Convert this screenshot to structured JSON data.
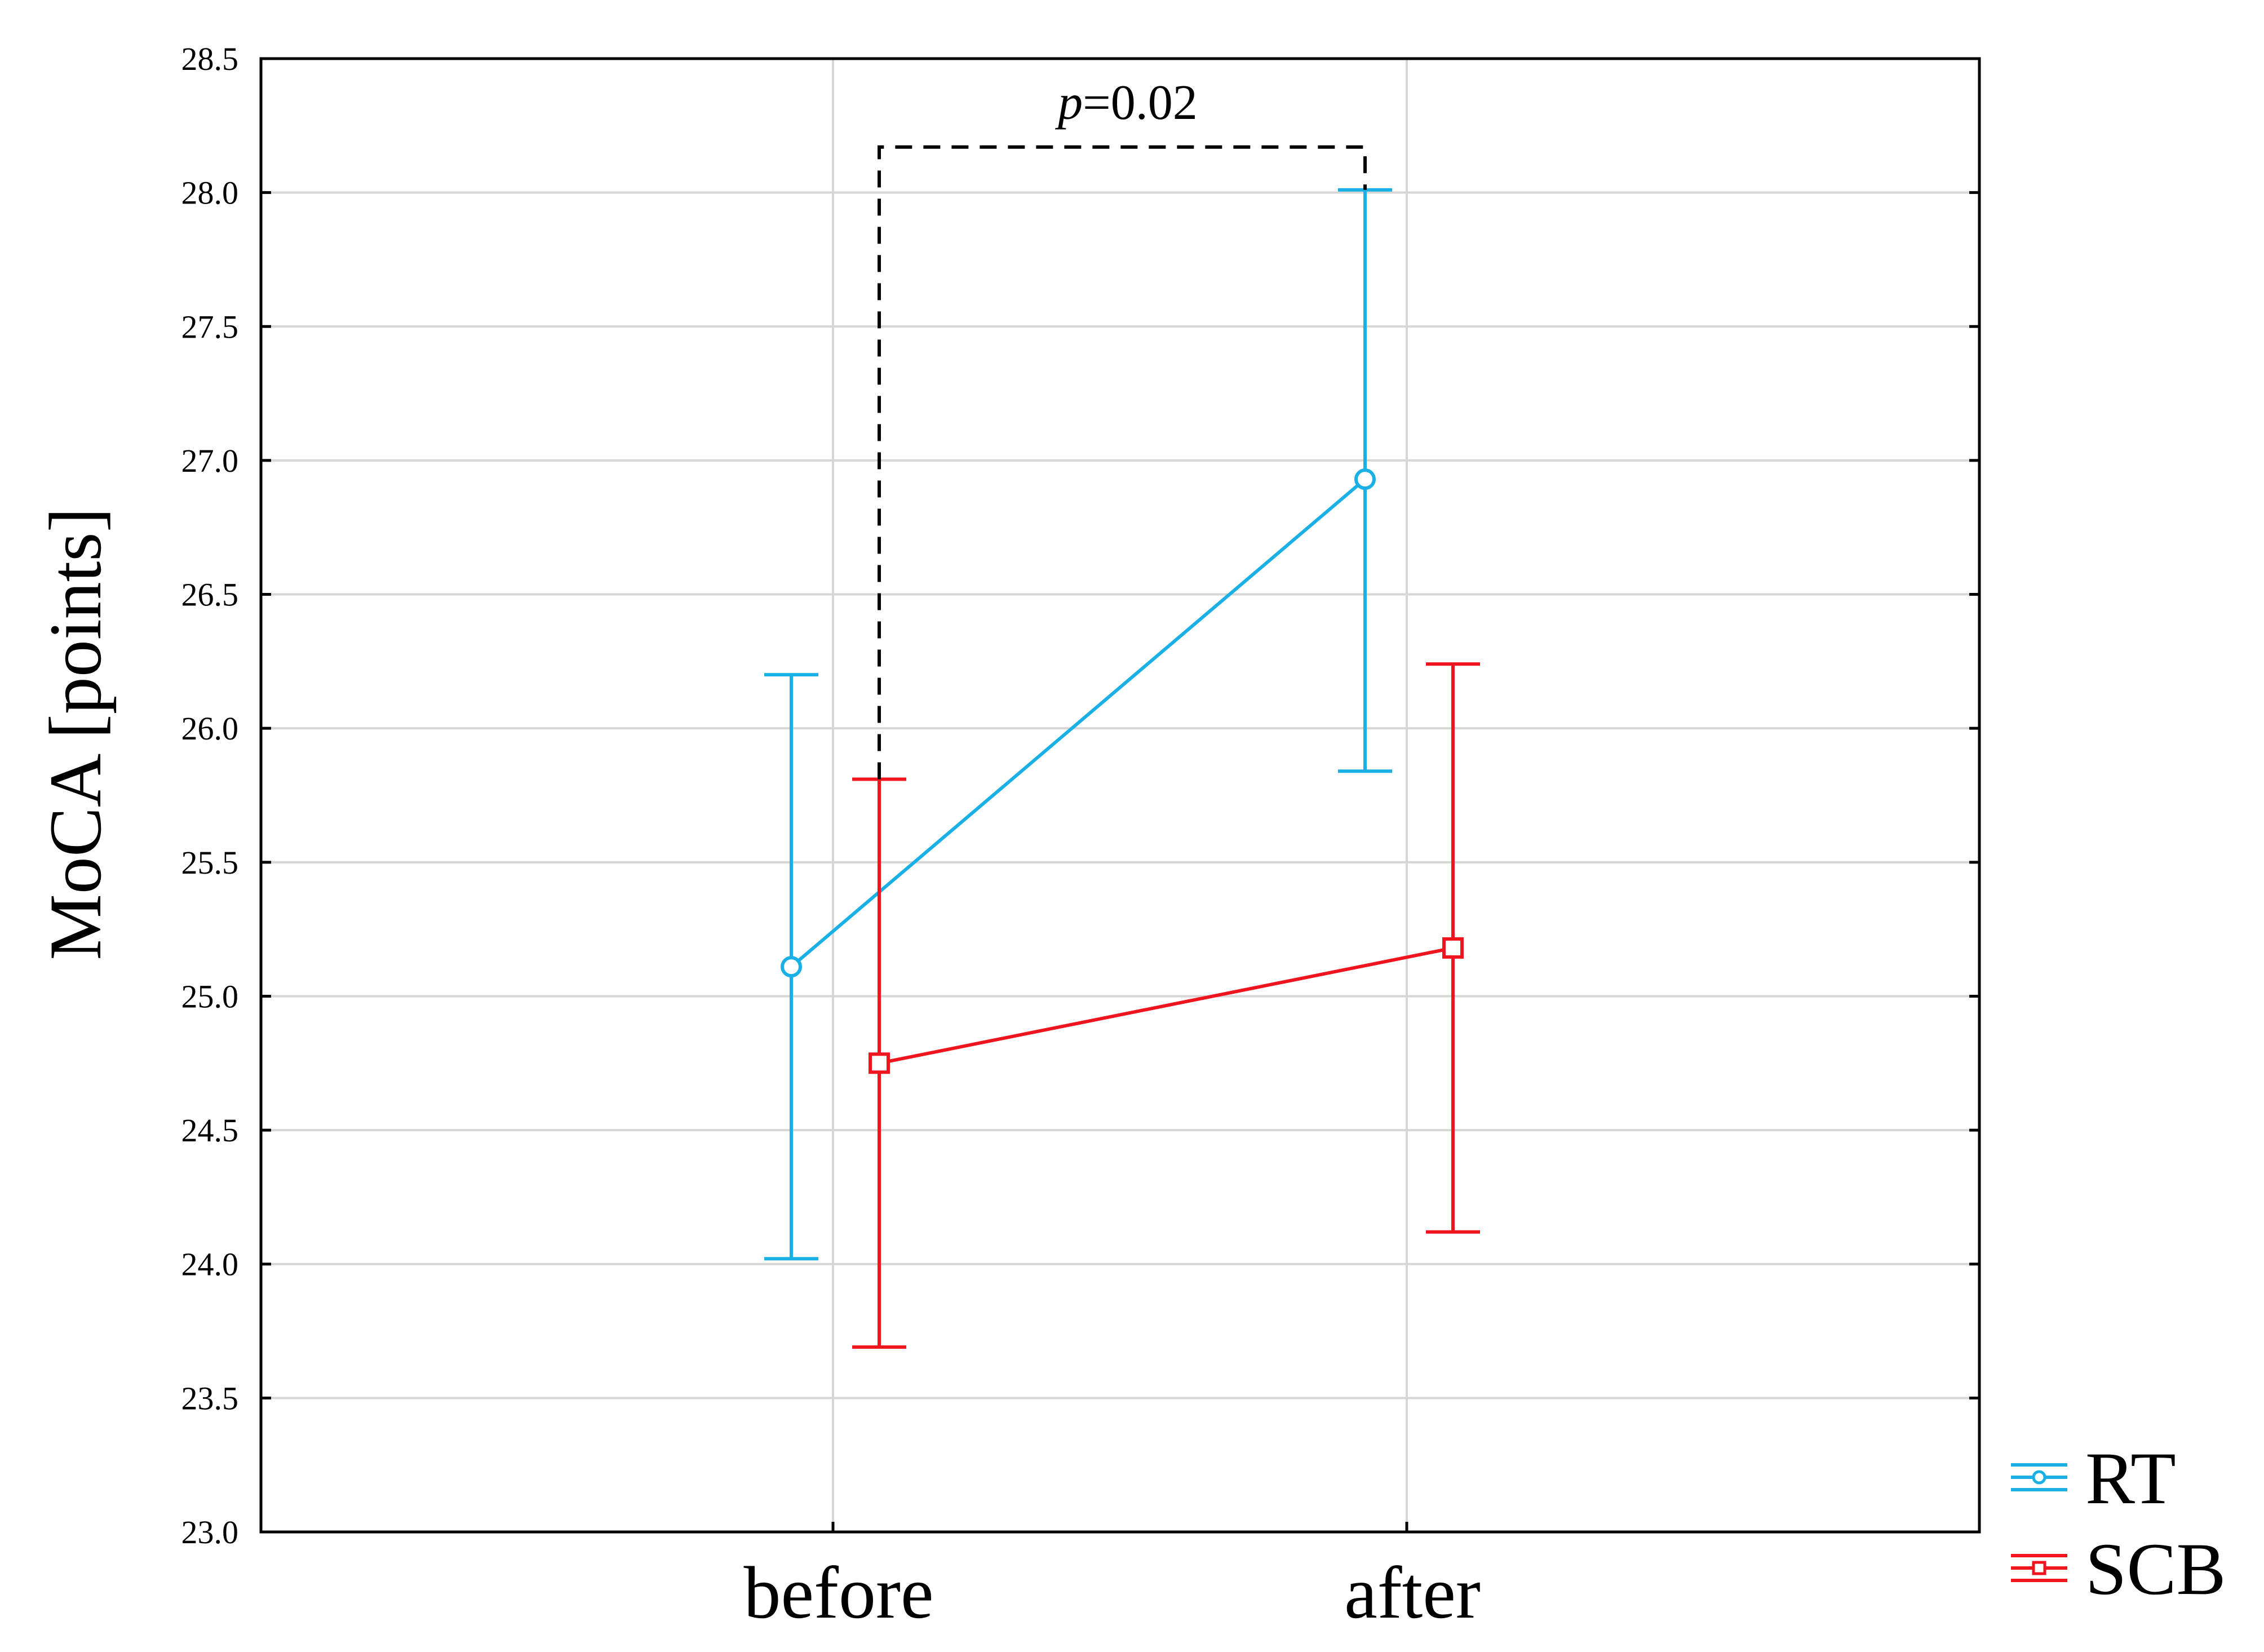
{
  "chart_data": {
    "type": "line",
    "title": "",
    "xlabel": "",
    "ylabel": "MoCA [points]",
    "categories": [
      "before",
      "after"
    ],
    "ylim": [
      23.0,
      28.5
    ],
    "yticks": [
      23.0,
      23.5,
      24.0,
      24.5,
      25.0,
      25.5,
      26.0,
      26.5,
      27.0,
      27.5,
      28.0,
      28.5
    ],
    "grid": true,
    "legend_position": "bottom-right, outside plot",
    "series": [
      {
        "name": "RT",
        "color": "#1AB0E6",
        "marker": "circle",
        "values": [
          25.11,
          26.93
        ],
        "lower": [
          24.02,
          25.84
        ],
        "upper": [
          26.2,
          28.01
        ]
      },
      {
        "name": "SCB",
        "color": "#F0141E",
        "marker": "square",
        "values": [
          24.75,
          25.18
        ],
        "lower": [
          23.69,
          24.12
        ],
        "upper": [
          25.81,
          26.24
        ]
      }
    ],
    "annotation": {
      "italic_part": "p",
      "rest": "=0.02",
      "from_category": "before",
      "to_category": "after",
      "bracket_top": 28.17,
      "left_end": 25.81,
      "right_end": 28.01
    }
  }
}
